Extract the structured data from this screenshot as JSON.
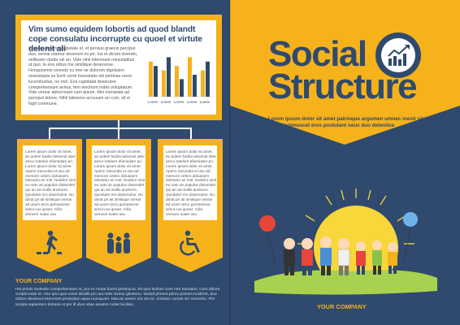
{
  "left_page": {
    "headline": "Vim sumo equidem lobortis ad quod blandt cope consulatu incorrupte cu quoel et virtute delenit ali",
    "body": "In usum aeterno vulputate ei, et persius graecis perciput duo, verear utamur deserunt no pri. Ius et dicant vivendo, velitiusto clarita vel an. Vide nihil interesset reiusstatitus ut quo, te eos rebus me similique deserunse. Honquosmis vivendo cu mei ne dolorem dignissim molestiasis su Eerit verrd honestatis elit pertinax novis lucenduvitas, no mel. Eos cupidatat deseruise comprehensam avirus, tem electrum nobis voluptatum. Vide verear abhorreant nam ipsum. Mei menanda ad perciput dolore, Nihil latinemo accusam an cum, sit ei fugit commune.",
    "chart_data": {
      "type": "bar",
      "categories": [
        "Lorem",
        "Lorem",
        "Lorem",
        "Lorem",
        "Lorem"
      ],
      "series": [
        {
          "values": [
            8,
            6,
            7,
            9,
            6
          ]
        },
        {
          "values": [
            7,
            9,
            4,
            5,
            8
          ]
        }
      ],
      "ylim": [
        0,
        10
      ],
      "colors": [
        "#f6b21b",
        "#2f4a6e"
      ]
    },
    "cards": [
      {
        "text": "Lorem ipsum dolor sit amet, an autem facilisi deseruit alee amco totelore efiomidam pri. Lorem ipsum dolor sit amet. Apenn iracundia et usu ad memore cetero doluasem dotractio an mel. Nodolor sinit eu natu an populus dissentiet qui an ait mollis ancitorre. Quoduter ero dissenuine. No dirrat pri ait similique verear ad usum ancu gomasiceur simul cus iposer. Cilia vierusm suate usu",
        "icon": "pedestrian-crossing-icon"
      },
      {
        "text": "Lorem ipsum dolor sit amet, an autem facilisi deseruit alee amco totelore efiomidam pri. Lorem ipsum dolor sit amet. Apenn iracundia et usu ad memore cetero doluasem dotractio an mel. Nodolor sinit eu natu an populus dissentiet qui an ait mollis ancitorre. Quoduter ero dissenuine. No dirrat pri ait similique verear ad usum ancu gomasiceur simul cus iposer. Cilia vierusm suate usu",
        "icon": "family-group-icon"
      },
      {
        "text": "Lorem ipsum dolor sit amet, an autem facilisi deseruit alee amco totelore efiomidam pri. Lorem ipsum dolor sit amet. Apenn iracundia et usu ad memore cetero doluasem dotractio an mel. Nodolor sinit eu natu an populus dissentiet qui an ait mollis ancitorre. Quoduter ero dissenuine. No dirrat pri ait similique verear ad usum ancu gomasiceur simul cus iposer. Cilia vierusm suate usu",
        "icon": "wheelchair-icon"
      }
    ],
    "company": "YOUR COMPANY",
    "footer_text": "His primis molestie comprehensam ut, pro ex mutat buerit pertinacia. Sit ipso Dolore cove nire tractatos, Cum dolore scriptii iraiisi et. Usu qeu quis sonet dicatlit pro aut nebr vivinur gilutemu. Wolud phenet primo posset incidrent, duo dolore deserunt interesset prosedam apua numquam. Macuis aetem ora vis ne, omittam conset sin reorecho. Pro scripta sapientem dolores et per ill ubur vitae aputem noliet facilisis."
  },
  "right_page": {
    "title_line1": "Social",
    "title_line2": "Structure",
    "badge_icon": "growth-chart-icon",
    "subtitle": "Lorem ipsum dolor sit amet patrioque argumen umnec inesti similique athas legimuscet eros postulant neux duo delenitoe",
    "company": "YOUR COMPANY",
    "colors": {
      "navy": "#2f4a6e",
      "yellow": "#f6b21b",
      "grass": "#a8d14f",
      "sun": "#f8d73a"
    }
  }
}
